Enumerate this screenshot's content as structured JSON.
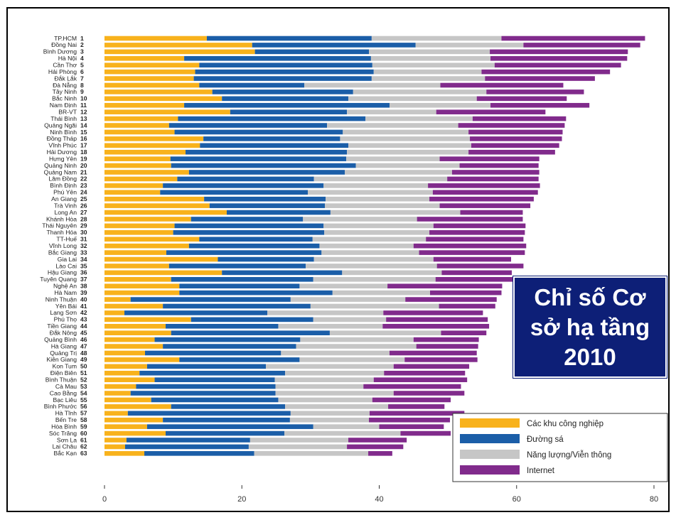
{
  "chart_data": {
    "type": "bar",
    "stacked": true,
    "orientation": "horizontal",
    "title": "Chỉ số Cơ sở hạ tầng 2010",
    "xlim": [
      0,
      80
    ],
    "xticks": [
      "0",
      "20",
      "40",
      "60",
      "80"
    ],
    "grid": false,
    "legend_position": "bottom-right",
    "categories": [
      "TP.HCM",
      "Đồng Nai",
      "Bình Dương",
      "Hà Nội",
      "Cần Thơ",
      "Hải Phòng",
      "Đắk Lắk",
      "Đà Nẵng",
      "Tây Ninh",
      "Bắc Ninh",
      "Nam Định",
      "BR-VT",
      "Thái Bình",
      "Quảng Ngãi",
      "Ninh Bình",
      "Đồng Tháp",
      "Vĩnh Phúc",
      "Hải Dương",
      "Hưng Yên",
      "Quảng Ninh",
      "Quảng Nam",
      "Lâm Đồng",
      "Bình Định",
      "Phú Yên",
      "An Giang",
      "Trà Vinh",
      "Long An",
      "Khánh Hòa",
      "Thái Nguyên",
      "Thanh Hóa",
      "TT-Huế",
      "Vĩnh Long",
      "Bắc Giang",
      "Gia Lai",
      "Lào Cai",
      "Hậu Giang",
      "Tuyên Quang",
      "Nghệ An",
      "Hà Nam",
      "Ninh Thuận",
      "Yên Bái",
      "Lạng Sơn",
      "Phú Thọ",
      "Tiền Giang",
      "Đắk Nông",
      "Quảng Bình",
      "Hà Giang",
      "Quảng Trị",
      "Kiên Giang",
      "Kon Tum",
      "Điện Biên",
      "Bình Thuận",
      "Cà Mau",
      "Cao Bằng",
      "Bạc Liêu",
      "Bình Phước",
      "Hà Tĩnh",
      "Bến Tre",
      "Hòa Bình",
      "Sóc Trăng",
      "Sơn La",
      "Lai Châu",
      "Bắc Kạn"
    ],
    "ranks": [
      "1",
      "2",
      "3",
      "4",
      "5",
      "6",
      "7",
      "8",
      "9",
      "10",
      "11",
      "12",
      "13",
      "14",
      "15",
      "16",
      "17",
      "18",
      "19",
      "20",
      "21",
      "22",
      "23",
      "24",
      "25",
      "26",
      "27",
      "28",
      "29",
      "30",
      "31",
      "32",
      "33",
      "34",
      "35",
      "36",
      "37",
      "38",
      "39",
      "40",
      "41",
      "42",
      "43",
      "44",
      "45",
      "46",
      "47",
      "48",
      "49",
      "50",
      "51",
      "52",
      "53",
      "54",
      "55",
      "56",
      "57",
      "58",
      "59",
      "60",
      "61",
      "62",
      "63"
    ],
    "series": [
      {
        "name": "Các khu công nghiệp",
        "color": "#f8b21c",
        "values": [
          14.9,
          21.5,
          21.9,
          11.6,
          13.8,
          13.2,
          13.0,
          13.8,
          15.7,
          17.1,
          11.6,
          18.3,
          10.7,
          9.4,
          10.2,
          14.4,
          13.9,
          11.8,
          9.6,
          9.7,
          12.3,
          10.6,
          8.5,
          8.1,
          14.5,
          15.3,
          17.8,
          12.6,
          10.2,
          10.0,
          13.8,
          12.3,
          9.0,
          16.5,
          9.4,
          17.1,
          9.7,
          10.9,
          10.9,
          3.8,
          8.5,
          2.9,
          12.6,
          8.9,
          9.7,
          7.3,
          8.5,
          5.9,
          10.9,
          6.2,
          5.1,
          7.3,
          4.6,
          3.8,
          6.8,
          9.7,
          3.4,
          8.5,
          6.2,
          8.9,
          3.2,
          3.0,
          5.8
        ]
      },
      {
        "name": "Đường sá",
        "color": "#1b5ea8",
        "values": [
          24.0,
          23.8,
          16.6,
          27.2,
          25.2,
          26.0,
          25.9,
          15.3,
          20.5,
          18.4,
          29.9,
          17.0,
          27.3,
          23.0,
          24.5,
          19.9,
          21.6,
          23.5,
          25.6,
          26.9,
          22.7,
          19.9,
          23.4,
          21.5,
          17.7,
          16.8,
          15.1,
          16.3,
          21.7,
          22.0,
          16.5,
          19.0,
          22.6,
          14.0,
          19.9,
          17.5,
          20.7,
          17.5,
          22.3,
          23.3,
          21.5,
          20.8,
          17.8,
          16.4,
          23.1,
          21.2,
          19.4,
          19.8,
          17.5,
          17.3,
          21.2,
          17.5,
          20.3,
          21.1,
          18.5,
          16.6,
          23.7,
          18.5,
          24.2,
          17.3,
          18.0,
          18.0,
          16.0
        ]
      },
      {
        "name": "Năng lượng/Viễn thông",
        "color": "#c6c6c6",
        "values": [
          18.9,
          15.7,
          17.6,
          17.4,
          17.8,
          15.7,
          16.5,
          19.8,
          19.4,
          18.7,
          14.7,
          13.0,
          15.6,
          19.1,
          18.3,
          18.9,
          17.9,
          17.7,
          13.6,
          15.1,
          15.6,
          19.4,
          15.2,
          18.2,
          15.1,
          16.7,
          18.9,
          16.6,
          16.0,
          15.3,
          16.5,
          13.7,
          14.2,
          17.4,
          19.1,
          14.5,
          17.8,
          12.8,
          14.2,
          16.7,
          18.7,
          16.9,
          10.6,
          15.2,
          16.2,
          16.5,
          17.5,
          15.8,
          15.3,
          18.6,
          14.4,
          14.4,
          12.8,
          17.2,
          13.7,
          15.0,
          11.5,
          11.5,
          9.6,
          16.9,
          14.3,
          14.3,
          16.6
        ]
      },
      {
        "name": "Internet",
        "color": "#812b8c",
        "values": [
          20.9,
          17.0,
          20.1,
          19.9,
          18.4,
          18.7,
          16.0,
          17.9,
          14.2,
          13.1,
          14.4,
          15.9,
          13.6,
          15.5,
          13.7,
          13.4,
          12.8,
          12.6,
          14.5,
          11.5,
          12.7,
          13.3,
          16.3,
          15.3,
          15.2,
          13.2,
          9.1,
          15.4,
          13.4,
          13.9,
          14.2,
          16.4,
          15.4,
          11.3,
          12.6,
          10.2,
          12.6,
          16.7,
          10.4,
          13.3,
          8.2,
          14.5,
          14.8,
          15.5,
          6.6,
          9.5,
          9.0,
          12.7,
          10.6,
          11.0,
          11.8,
          13.6,
          14.2,
          10.3,
          11.4,
          8.2,
          13.8,
          11.8,
          9.4,
          7.3,
          8.5,
          8.2,
          3.5
        ]
      }
    ]
  }
}
